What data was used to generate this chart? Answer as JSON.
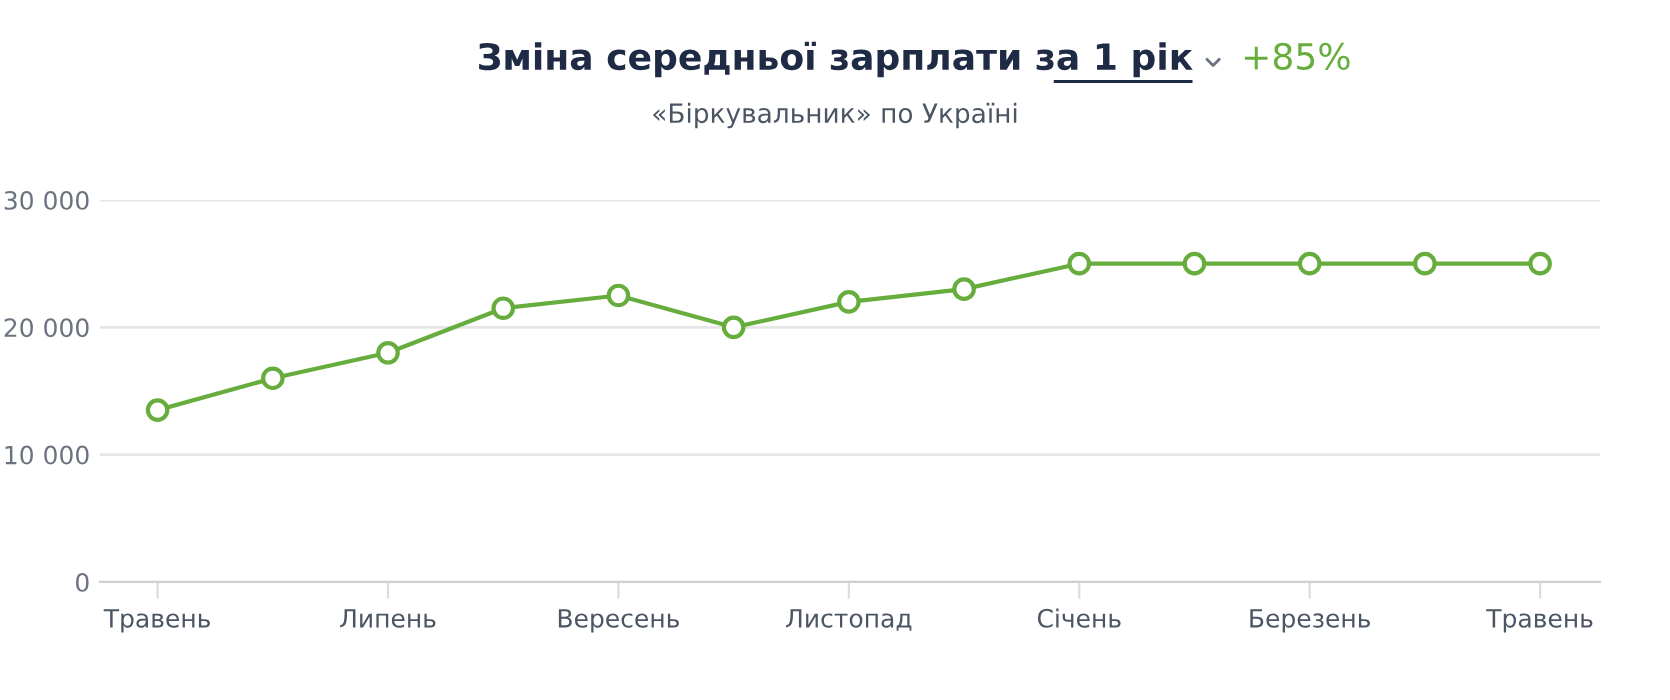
{
  "chart_data": {
    "type": "line",
    "title": "Зміна середньої зарплати за 1 рік",
    "subtitle": "«Біркувальник» по Україні",
    "annotations": [
      "+85%"
    ],
    "categories": [
      "Травень",
      null,
      "Липень",
      null,
      "Вересень",
      null,
      "Листопад",
      null,
      "Січень",
      null,
      "Березень",
      null,
      "Травень"
    ],
    "series": [
      {
        "color": "#66ad3d",
        "values": [
          13500,
          16000,
          18000,
          21500,
          22500,
          20000,
          22000,
          23000,
          25000,
          25000,
          25000,
          25000,
          25000
        ]
      }
    ],
    "ylim": [
      0,
      30000
    ],
    "yticks": [
      {
        "value": 0,
        "label": "0"
      },
      {
        "value": 10000,
        "label": "10 000"
      },
      {
        "value": 20000,
        "label": "20 000"
      },
      {
        "value": 30000,
        "label": "30 000"
      }
    ],
    "grid": "y",
    "legend": false,
    "marker": "circle",
    "line_style": "solid"
  }
}
